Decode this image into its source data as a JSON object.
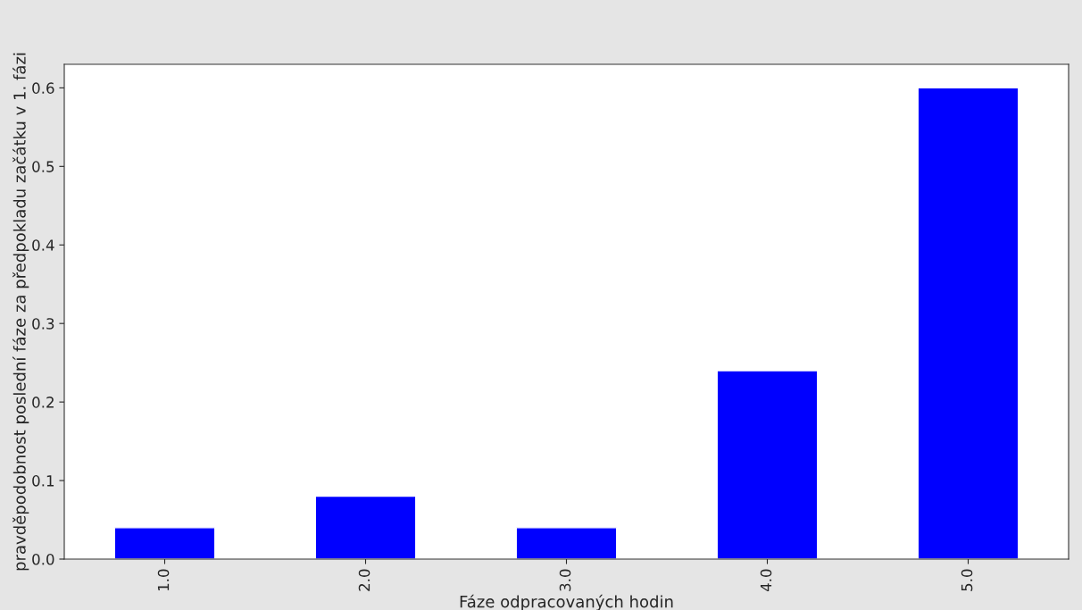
{
  "chart_data": {
    "type": "bar",
    "xlabel": "Fáze odpracovaných hodin",
    "ylabel": "pravděpodobnost poslední fáze za předpokladu začátku v 1. fázi",
    "categories": [
      "1.0",
      "2.0",
      "3.0",
      "4.0",
      "5.0"
    ],
    "values": [
      0.04,
      0.08,
      0.04,
      0.24,
      0.6
    ],
    "color": "#0000ff",
    "ylim": [
      0,
      0.63
    ],
    "yticks": [
      {
        "value": 0,
        "label": "0.0"
      },
      0.1,
      0.2,
      0.3,
      0.4,
      0.5,
      0.6
    ],
    "grid": false
  }
}
